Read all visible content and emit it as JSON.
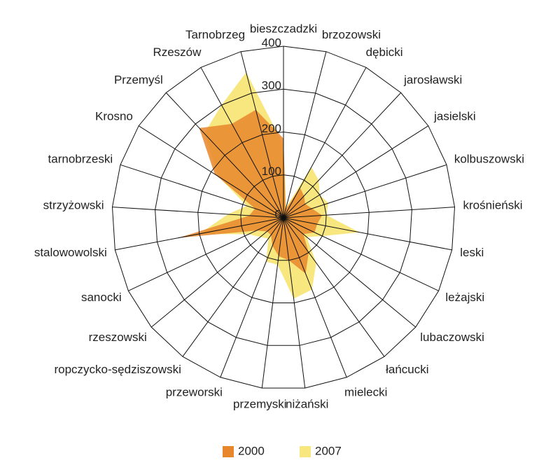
{
  "chart_data": {
    "type": "radar",
    "categories": [
      "bieszczadzki",
      "brzozowski",
      "dębicki",
      "jarosławski",
      "jasielski",
      "kolbuszowski",
      "krośnieński",
      "leski",
      "leżajski",
      "lubaczowski",
      "łańcucki",
      "mielecki",
      "niżański",
      "przemyski",
      "przeworski",
      "ropczycko-sędziszowski",
      "rzeszowski",
      "sanocki",
      "stalowowolski",
      "strzyżowski",
      "tarnobrzeski",
      "Krosno",
      "Przemyśl",
      "Rzeszów",
      "Tarnobrzeg"
    ],
    "series": [
      {
        "name": "2007",
        "color": "#f8e77e",
        "values": [
          170,
          25,
          135,
          120,
          100,
          110,
          100,
          180,
          100,
          70,
          130,
          180,
          190,
          110,
          110,
          60,
          70,
          90,
          200,
          130,
          90,
          180,
          270,
          300,
          350
        ]
      },
      {
        "name": "2000",
        "color": "#e8862c",
        "values": [
          185,
          20,
          80,
          70,
          60,
          70,
          90,
          80,
          80,
          60,
          100,
          140,
          100,
          90,
          70,
          50,
          50,
          70,
          250,
          80,
          70,
          190,
          287,
          250,
          260
        ]
      }
    ],
    "ylim": [
      0,
      400
    ],
    "yticks": [
      0,
      100,
      200,
      300,
      400
    ],
    "grid": true,
    "legend": "bottom"
  }
}
